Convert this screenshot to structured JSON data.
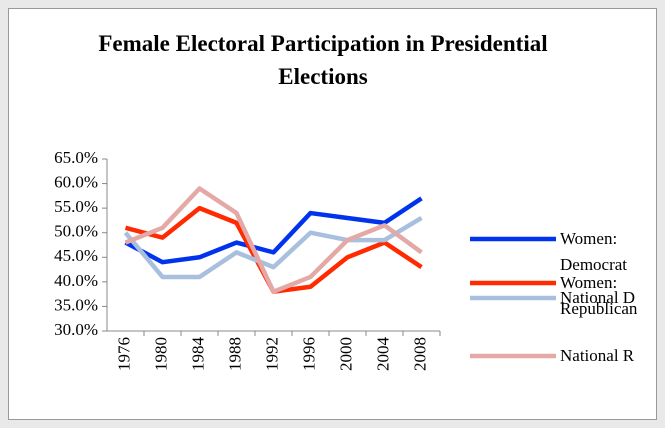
{
  "chart_data": {
    "type": "line",
    "title": "Female Electoral Participation in Presidential Elections",
    "categories": [
      "1976",
      "1980",
      "1984",
      "1988",
      "1992",
      "1996",
      "2000",
      "2004",
      "2008"
    ],
    "series": [
      {
        "name": "Women: Democrat",
        "color": "#0033ee",
        "values": [
          48,
          44,
          45,
          48,
          46,
          54,
          53,
          52,
          57
        ]
      },
      {
        "name": "Women: Republican",
        "color": "#ff2a00",
        "values": [
          51,
          49,
          55,
          52,
          38,
          39,
          45,
          48,
          43
        ]
      },
      {
        "name": "National D",
        "color": "#a8c0de",
        "values": [
          50,
          41,
          41,
          46,
          43,
          50,
          48.5,
          48.5,
          53
        ]
      },
      {
        "name": "National R",
        "color": "#e4a9a6",
        "values": [
          48,
          51,
          59,
          54,
          38,
          41,
          48.5,
          51.5,
          46
        ]
      }
    ],
    "ylim": [
      30,
      65
    ],
    "yticks": [
      {
        "value": 30,
        "label": "30.0%"
      },
      {
        "value": 35,
        "label": "35.0%"
      },
      {
        "value": 40,
        "label": "40.0%"
      },
      {
        "value": 45,
        "label": "45.0%"
      },
      {
        "value": 50,
        "label": "50.0%"
      },
      {
        "value": 55,
        "label": "55.0%"
      },
      {
        "value": 60,
        "label": "60.0%"
      },
      {
        "value": 65,
        "label": "65.0%"
      }
    ],
    "legend": "right"
  }
}
